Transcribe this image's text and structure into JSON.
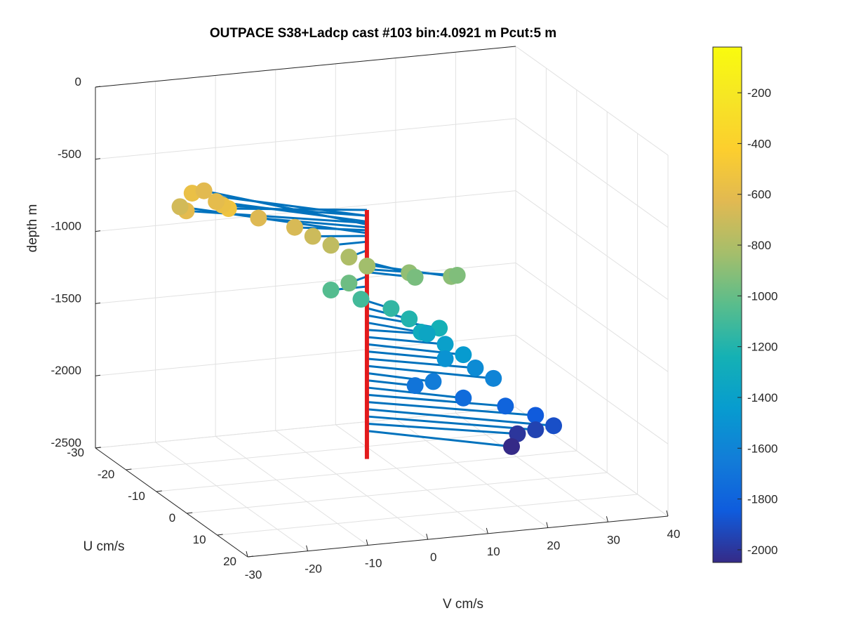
{
  "chart_data": {
    "type": "scatter",
    "title": "OUTPACE S38+Ladcp cast #103 bin:4.0921 m  Pcut:5 m",
    "xlabel": "U cm/s",
    "ylabel": "V cm/s",
    "zlabel": "depth m",
    "xlim": [
      -30,
      20
    ],
    "ylim": [
      -30,
      40
    ],
    "zlim": [
      -2500,
      0
    ],
    "xticks": [
      -30,
      -20,
      -10,
      0,
      10,
      20
    ],
    "yticks": [
      -30,
      -20,
      -10,
      0,
      10,
      20,
      30,
      40
    ],
    "zticks": [
      0,
      -500,
      -1000,
      -1500,
      -2000,
      -2500
    ],
    "colorbar": {
      "ticks": [
        -200,
        -400,
        -600,
        -800,
        -1000,
        -1200,
        -1400,
        -1600,
        -1800,
        -2000
      ],
      "range": [
        -2050,
        -20
      ],
      "colormap": "parula"
    },
    "grid": true,
    "origin_line_color": "#e31a1c",
    "stick_color": "#0072bd",
    "points": [
      {
        "u": -6,
        "v": -20,
        "depth": -520
      },
      {
        "u": -10,
        "v": -19,
        "depth": -560
      },
      {
        "u": -14,
        "v": -18,
        "depth": -600
      },
      {
        "u": -16,
        "v": -21,
        "depth": -560
      },
      {
        "u": -20,
        "v": -17,
        "depth": -620
      },
      {
        "u": -12,
        "v": -24,
        "depth": -610
      },
      {
        "u": -18,
        "v": -22,
        "depth": -680
      },
      {
        "u": -8,
        "v": -14,
        "depth": -640
      },
      {
        "u": -4,
        "v": -10,
        "depth": -660
      },
      {
        "u": -2,
        "v": -8,
        "depth": -700
      },
      {
        "u": 0,
        "v": -6,
        "depth": -740
      },
      {
        "u": 2,
        "v": -4,
        "depth": -800
      },
      {
        "u": 4,
        "v": -2,
        "depth": -840
      },
      {
        "u": 6,
        "v": 4,
        "depth": -880
      },
      {
        "u": 8,
        "v": 10,
        "depth": -900
      },
      {
        "u": 6,
        "v": 12,
        "depth": -930
      },
      {
        "u": 4,
        "v": 6,
        "depth": -950
      },
      {
        "u": 2,
        "v": -4,
        "depth": -980
      },
      {
        "u": 0,
        "v": -6,
        "depth": -1050
      },
      {
        "u": 2,
        "v": -2,
        "depth": -1100
      },
      {
        "u": 4,
        "v": 2,
        "depth": -1150
      },
      {
        "u": 6,
        "v": 4,
        "depth": -1200
      },
      {
        "u": 8,
        "v": 8,
        "depth": -1250
      },
      {
        "u": 6,
        "v": 6,
        "depth": -1300
      },
      {
        "u": 4,
        "v": 8,
        "depth": -1350
      },
      {
        "u": 6,
        "v": 10,
        "depth": -1400
      },
      {
        "u": 8,
        "v": 12,
        "depth": -1450
      },
      {
        "u": 6,
        "v": 10,
        "depth": -1500
      },
      {
        "u": 8,
        "v": 14,
        "depth": -1550
      },
      {
        "u": 10,
        "v": 16,
        "depth": -1600
      },
      {
        "u": 6,
        "v": 8,
        "depth": -1650
      },
      {
        "u": 4,
        "v": 6,
        "depth": -1700
      },
      {
        "u": 8,
        "v": 12,
        "depth": -1750
      },
      {
        "u": 10,
        "v": 18,
        "depth": -1800
      },
      {
        "u": 12,
        "v": 22,
        "depth": -1850
      },
      {
        "u": 14,
        "v": 24,
        "depth": -1900
      },
      {
        "u": 12,
        "v": 22,
        "depth": -1950
      },
      {
        "u": 10,
        "v": 20,
        "depth": -2000
      },
      {
        "u": 12,
        "v": 18,
        "depth": -2050
      }
    ]
  }
}
